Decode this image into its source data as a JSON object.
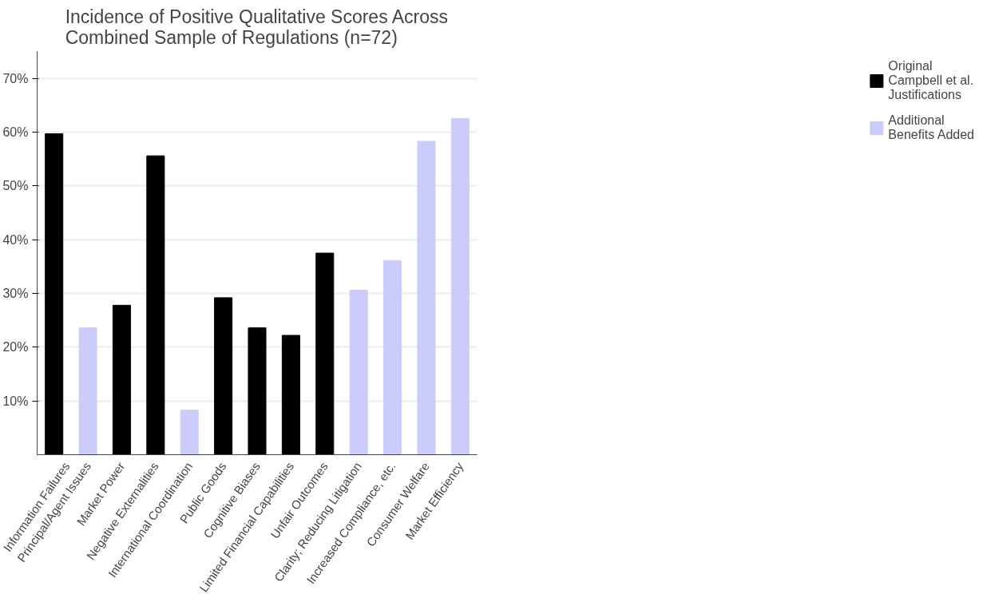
{
  "chart_data": {
    "type": "bar",
    "title": "Incidence of Positive Qualitative Scores Across Combined Sample of Regulations (n=72)",
    "categories": [
      "Information Failures",
      "Principal/Agent Issues",
      "Market Power",
      "Negative Externalities",
      "International Coordination",
      "Public Goods",
      "Cognitive Biases",
      "Limited Financial Capabilities",
      "Unfair Outcomes",
      "Clarity; Reducing Litigation",
      "Increased Compliance, etc.",
      "Consumer Welfare",
      "Market Efficiency"
    ],
    "series": [
      {
        "name": "Original Campbell et al. Justifications",
        "color": "#000000",
        "values": [
          59.7,
          null,
          27.8,
          55.6,
          null,
          29.2,
          23.6,
          22.2,
          37.5,
          null,
          null,
          null,
          null
        ]
      },
      {
        "name": "Additional Benefits Added",
        "color": "#ccccfa",
        "values": [
          null,
          23.6,
          null,
          null,
          8.3,
          null,
          null,
          null,
          null,
          30.6,
          36.1,
          58.3,
          62.5
        ]
      }
    ],
    "ylim": [
      0,
      75
    ],
    "yticks": [
      {
        "value": 10,
        "label": "10%"
      },
      {
        "value": 20,
        "label": "20%"
      },
      {
        "value": 30,
        "label": "30%"
      },
      {
        "value": 40,
        "label": "40%"
      },
      {
        "value": 50,
        "label": "50%"
      },
      {
        "value": 60,
        "label": "60%"
      },
      {
        "value": 70,
        "label": "70%"
      }
    ],
    "grid": "y",
    "legend": "right"
  }
}
